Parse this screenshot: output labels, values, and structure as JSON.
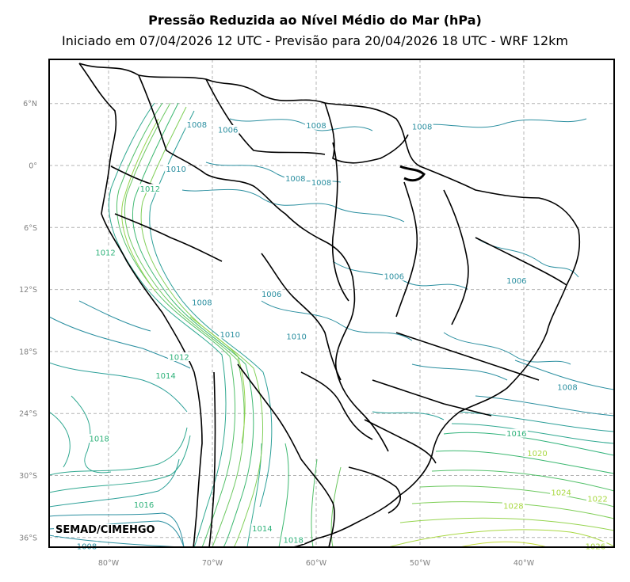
{
  "title": "Pressão Reduzida ao Nível Médio do Mar (hPa)",
  "subtitle": "Iniciado em 07/04/2026 12 UTC - Previsão para 20/04/2026 18 UTC - WRF 12km",
  "credit": "SEMAD/CIMEHGO",
  "lat_ticks": [
    "6°N",
    "0°",
    "6°S",
    "12°S",
    "18°S",
    "24°S",
    "30°S",
    "36°S"
  ],
  "lon_ticks": [
    "80°W",
    "70°W",
    "60°W",
    "50°W",
    "40°W"
  ],
  "colors": {
    "isobar_low": "#2b8fa0",
    "isobar_mid": "#2fb27a",
    "isobar_high": "#a8d840",
    "border": "#000000",
    "grid": "#b4b4b4"
  },
  "contour_labels": [
    {
      "text": "1008",
      "lat": 3.8,
      "lon": -71.5
    },
    {
      "text": "1006",
      "lat": 3.3,
      "lon": -68.5
    },
    {
      "text": "1008",
      "lat": 3.7,
      "lon": -60.0
    },
    {
      "text": "1008",
      "lat": 3.6,
      "lon": -49.8
    },
    {
      "text": "1010",
      "lat": -0.5,
      "lon": -73.5
    },
    {
      "text": "1012",
      "lat": -2.4,
      "lon": -76.0
    },
    {
      "text": "1008",
      "lat": -1.4,
      "lon": -62.0
    },
    {
      "text": "1008",
      "lat": -1.8,
      "lon": -59.5
    },
    {
      "text": "1012",
      "lat": -8.6,
      "lon": -80.3
    },
    {
      "text": "1006",
      "lat": -10.9,
      "lon": -52.5
    },
    {
      "text": "1006",
      "lat": -11.3,
      "lon": -40.7
    },
    {
      "text": "1006",
      "lat": -12.6,
      "lon": -64.3
    },
    {
      "text": "1008",
      "lat": -13.4,
      "lon": -71.0
    },
    {
      "text": "1010",
      "lat": -16.5,
      "lon": -68.3
    },
    {
      "text": "1010",
      "lat": -16.7,
      "lon": -61.9
    },
    {
      "text": "1012",
      "lat": -18.7,
      "lon": -73.2
    },
    {
      "text": "1014",
      "lat": -20.5,
      "lon": -74.5
    },
    {
      "text": "1008",
      "lat": -21.6,
      "lon": -35.8
    },
    {
      "text": "1016",
      "lat": -26.1,
      "lon": -40.7
    },
    {
      "text": "1018",
      "lat": -26.6,
      "lon": -80.9
    },
    {
      "text": "1020",
      "lat": -28.0,
      "lon": -38.7
    },
    {
      "text": "1024",
      "lat": -31.8,
      "lon": -36.4
    },
    {
      "text": "1022",
      "lat": -32.4,
      "lon": -32.9
    },
    {
      "text": "1016",
      "lat": -33.0,
      "lon": -76.6
    },
    {
      "text": "1028",
      "lat": -33.1,
      "lon": -41.0
    },
    {
      "text": "1012",
      "lat": -35.2,
      "lon": -81.6
    },
    {
      "text": "1014",
      "lat": -35.3,
      "lon": -65.2
    },
    {
      "text": "1018",
      "lat": -36.4,
      "lon": -62.2
    },
    {
      "text": "1008",
      "lat": -37.0,
      "lon": -82.1
    },
    {
      "text": "1026",
      "lat": -37.0,
      "lon": -33.1
    }
  ]
}
